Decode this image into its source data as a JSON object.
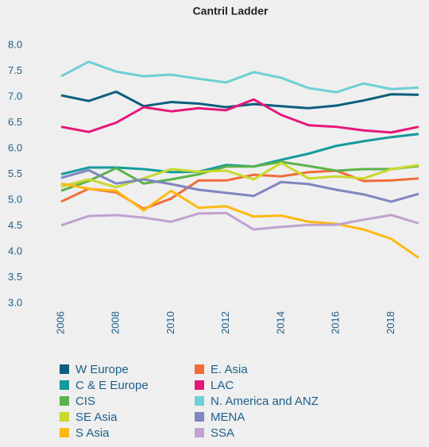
{
  "chart_data": {
    "type": "line",
    "title": "Cantril Ladder",
    "x": [
      2006,
      2007,
      2008,
      2009,
      2010,
      2011,
      2012,
      2013,
      2014,
      2015,
      2016,
      2017,
      2018,
      2019
    ],
    "xlim": [
      2006,
      2019
    ],
    "xticks": [
      2006,
      2008,
      2010,
      2012,
      2014,
      2016,
      2018
    ],
    "ylim": [
      3,
      8
    ],
    "yticks": [
      {
        "value": 3,
        "label": "3.0"
      },
      {
        "value": 3.5,
        "label": "3.5"
      },
      {
        "value": 4,
        "label": "4.0"
      },
      {
        "value": 4.5,
        "label": "4.5"
      },
      {
        "value": 5,
        "label": "5.0"
      },
      {
        "value": 5.5,
        "label": "5.5"
      },
      {
        "value": 6,
        "label": "6.0"
      },
      {
        "value": 6.5,
        "label": "6.5"
      },
      {
        "value": 7,
        "label": "7.0"
      },
      {
        "value": 7.5,
        "label": "7.5"
      },
      {
        "value": 8,
        "label": "8.0"
      }
    ],
    "grid": false,
    "series": [
      {
        "name": "W Europe",
        "color": "#0d5e7e",
        "values": [
          7.03,
          6.92,
          7.1,
          6.82,
          6.9,
          6.87,
          6.8,
          6.86,
          6.82,
          6.78,
          6.83,
          6.93,
          7.05,
          7.04
        ]
      },
      {
        "name": "E. Asia",
        "color": "#f26b3a",
        "values": [
          4.97,
          5.22,
          5.15,
          4.83,
          5.03,
          5.38,
          5.38,
          5.49,
          5.46,
          5.54,
          5.57,
          5.37,
          5.38,
          5.42
        ]
      },
      {
        "name": "C & E Europe",
        "color": "#159a9c",
        "values": [
          5.5,
          5.63,
          5.63,
          5.6,
          5.54,
          5.55,
          5.68,
          5.65,
          5.78,
          5.9,
          6.05,
          6.14,
          6.22,
          6.28
        ]
      },
      {
        "name": "LAC",
        "color": "#e6177a",
        "values": [
          6.42,
          6.32,
          6.5,
          6.8,
          6.72,
          6.78,
          6.74,
          6.95,
          6.65,
          6.45,
          6.42,
          6.35,
          6.31,
          6.42
        ]
      },
      {
        "name": "CIS",
        "color": "#5bb24a",
        "values": [
          5.18,
          5.37,
          5.62,
          5.32,
          5.4,
          5.5,
          5.65,
          5.65,
          5.74,
          5.66,
          5.57,
          5.6,
          5.6,
          5.66
        ]
      },
      {
        "name": "N. America and ANZ",
        "color": "#6fcfd6",
        "values": [
          7.4,
          7.68,
          7.49,
          7.4,
          7.43,
          7.35,
          7.28,
          7.48,
          7.37,
          7.17,
          7.09,
          7.26,
          7.15,
          7.18
        ]
      },
      {
        "name": "SE Asia",
        "color": "#c9d92c",
        "values": [
          5.26,
          5.4,
          5.25,
          5.42,
          5.6,
          5.55,
          5.57,
          5.4,
          5.72,
          5.42,
          5.46,
          5.42,
          5.6,
          5.68
        ]
      },
      {
        "name": "MENA",
        "color": "#7f86c0",
        "values": [
          5.43,
          5.58,
          5.32,
          5.4,
          5.31,
          5.2,
          5.14,
          5.08,
          5.35,
          5.31,
          5.2,
          5.11,
          4.97,
          5.12
        ]
      },
      {
        "name": "S Asia",
        "color": "#fdb913",
        "values": [
          5.32,
          5.22,
          5.18,
          4.8,
          5.18,
          4.85,
          4.88,
          4.68,
          4.7,
          4.58,
          4.54,
          4.43,
          4.25,
          3.88
        ]
      },
      {
        "name": "SSA",
        "color": "#c0a1cf",
        "values": [
          4.51,
          4.69,
          4.71,
          4.66,
          4.58,
          4.74,
          4.75,
          4.43,
          4.48,
          4.52,
          4.52,
          4.62,
          4.71,
          4.55
        ]
      }
    ]
  }
}
